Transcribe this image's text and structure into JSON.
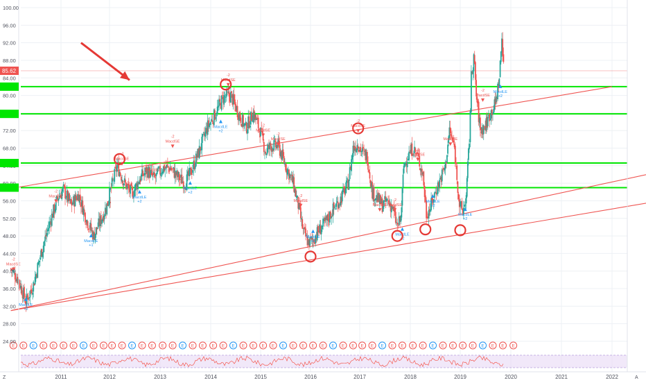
{
  "chart_data": {
    "type": "candlestick",
    "y_axis": {
      "position": "left",
      "ticks": [
        "100.00",
        "96.00",
        "92.00",
        "88.00",
        "84.00",
        "80.00",
        "76.00",
        "72.00",
        "68.00",
        "64.00",
        "60.00",
        "56.00",
        "52.00",
        "48.00",
        "44.00",
        "40.00",
        "36.00",
        "32.00",
        "28.00",
        "24.00"
      ],
      "range": [
        22,
        102
      ]
    },
    "x_axis": {
      "ticks": [
        "2011",
        "2012",
        "2013",
        "2014",
        "2015",
        "2016",
        "2017",
        "2018",
        "2019",
        "2020",
        "2021",
        "2022"
      ],
      "range": [
        2010.0,
        2022.7
      ]
    },
    "last_price": {
      "label": "85.62",
      "value": 85.62,
      "color": "#ef5350"
    },
    "horizontal_levels": [
      {
        "value": 82.0,
        "color": "#00e600"
      },
      {
        "value": 75.8,
        "color": "#00e600"
      },
      {
        "value": 64.6,
        "color": "#00e600"
      },
      {
        "value": 59.0,
        "color": "#00e600"
      }
    ],
    "trend_lines": [
      {
        "x1": 2010.0,
        "y1": 58.8,
        "x2": 2022.0,
        "y2": 82.0
      },
      {
        "x1": 2010.0,
        "y1": 31.0,
        "x2": 2022.7,
        "y2": 62.0
      },
      {
        "x1": 2010.0,
        "y1": 31.0,
        "x2": 2022.7,
        "y2": 55.5
      }
    ],
    "arrow": {
      "x1": 2011.4,
      "y1": 92.0,
      "x2": 2012.4,
      "y2": 83.5
    },
    "circles": [
      {
        "x": 2012.2,
        "y": 65.5
      },
      {
        "x": 2014.3,
        "y": 82.5
      },
      {
        "x": 2016.0,
        "y": 43.3
      },
      {
        "x": 2016.95,
        "y": 72.5
      },
      {
        "x": 2017.75,
        "y": 48.0
      },
      {
        "x": 2018.3,
        "y": 49.5
      },
      {
        "x": 2019.0,
        "y": 49.3
      }
    ],
    "signals": [
      {
        "x": 2010.05,
        "y": 40.5,
        "type": "sell",
        "text": "MacdSE",
        "count": "-2"
      },
      {
        "x": 2010.3,
        "y": 33.5,
        "type": "buy",
        "text": "MacdLE",
        "count": "+2"
      },
      {
        "x": 2010.9,
        "y": 56.0,
        "type": "sell",
        "text": "MacdSE",
        "count": "-2"
      },
      {
        "x": 2011.6,
        "y": 48.0,
        "type": "buy",
        "text": "MacdLE",
        "count": "+1"
      },
      {
        "x": 2012.25,
        "y": 64.5,
        "type": "sell",
        "text": "MacdSE",
        "count": "-2"
      },
      {
        "x": 2012.6,
        "y": 58.0,
        "type": "buy",
        "text": "MacdLE",
        "count": "+2"
      },
      {
        "x": 2012.85,
        "y": 62.0,
        "type": "sell",
        "text": "MacdSE",
        "count": "-2"
      },
      {
        "x": 2013.25,
        "y": 68.5,
        "type": "sell",
        "text": "MacdSE",
        "count": "-2"
      },
      {
        "x": 2013.6,
        "y": 60.0,
        "type": "buy",
        "text": "MacdLE",
        "count": "+2"
      },
      {
        "x": 2014.2,
        "y": 74.0,
        "type": "buy",
        "text": "MacdLE",
        "count": "+2"
      },
      {
        "x": 2014.35,
        "y": 82.5,
        "type": "sell",
        "text": "MacdSE",
        "count": "-2"
      },
      {
        "x": 2015.05,
        "y": 71.0,
        "type": "sell",
        "text": "MacdSE",
        "count": "-2"
      },
      {
        "x": 2015.35,
        "y": 69.0,
        "type": "sell",
        "text": "MacdSE",
        "count": "-2"
      },
      {
        "x": 2015.8,
        "y": 55.0,
        "type": "sell",
        "text": "MacdSE",
        "count": "-2"
      },
      {
        "x": 2016.05,
        "y": 49.0,
        "type": "buy",
        "text": "MacdLE",
        "count": "+2"
      },
      {
        "x": 2016.95,
        "y": 72.0,
        "type": "sell",
        "text": "MacdSE",
        "count": "-2"
      },
      {
        "x": 2017.4,
        "y": 54.0,
        "type": "sell",
        "text": "MacdSE",
        "count": "-2"
      },
      {
        "x": 2017.7,
        "y": 54.0,
        "type": "sell",
        "text": "MacdSE",
        "count": "-2"
      },
      {
        "x": 2017.85,
        "y": 49.5,
        "type": "buy",
        "text": "MacdLE",
        "count": "+2"
      },
      {
        "x": 2018.15,
        "y": 65.5,
        "type": "sell",
        "text": "MacdSE",
        "count": "-2"
      },
      {
        "x": 2018.45,
        "y": 57.0,
        "type": "buy",
        "text": "MacdLE",
        "count": "+2"
      },
      {
        "x": 2018.8,
        "y": 69.0,
        "type": "sell",
        "text": "MacdSE",
        "count": "-2"
      },
      {
        "x": 2019.1,
        "y": 54.0,
        "type": "buy",
        "text": "MacdLE",
        "count": "+2"
      },
      {
        "x": 2019.45,
        "y": 79.0,
        "type": "sell",
        "text": "MacdSE",
        "count": "-2"
      },
      {
        "x": 2019.8,
        "y": 82.0,
        "type": "buy",
        "text": "MacdLE",
        "count": "+2"
      }
    ],
    "anchors": [
      [
        2010.0,
        40.5
      ],
      [
        2010.15,
        38.0
      ],
      [
        2010.3,
        33.0
      ],
      [
        2010.45,
        37.0
      ],
      [
        2010.6,
        44.0
      ],
      [
        2010.8,
        52.0
      ],
      [
        2010.95,
        57.0
      ],
      [
        2011.05,
        58.5
      ],
      [
        2011.2,
        55.0
      ],
      [
        2011.35,
        57.5
      ],
      [
        2011.5,
        52.0
      ],
      [
        2011.65,
        48.0
      ],
      [
        2011.85,
        53.0
      ],
      [
        2012.0,
        57.5
      ],
      [
        2012.15,
        64.0
      ],
      [
        2012.3,
        60.0
      ],
      [
        2012.45,
        57.5
      ],
      [
        2012.6,
        61.0
      ],
      [
        2012.75,
        63.0
      ],
      [
        2012.9,
        61.0
      ],
      [
        2013.05,
        63.5
      ],
      [
        2013.2,
        63.5
      ],
      [
        2013.35,
        61.5
      ],
      [
        2013.5,
        60.0
      ],
      [
        2013.65,
        63.5
      ],
      [
        2013.8,
        68.0
      ],
      [
        2013.95,
        73.0
      ],
      [
        2014.1,
        76.0
      ],
      [
        2014.25,
        79.5
      ],
      [
        2014.4,
        80.0
      ],
      [
        2014.55,
        76.0
      ],
      [
        2014.7,
        72.5
      ],
      [
        2014.85,
        76.0
      ],
      [
        2015.0,
        71.5
      ],
      [
        2015.1,
        67.0
      ],
      [
        2015.2,
        68.5
      ],
      [
        2015.35,
        68.5
      ],
      [
        2015.5,
        64.0
      ],
      [
        2015.65,
        60.0
      ],
      [
        2015.75,
        55.0
      ],
      [
        2015.85,
        49.0
      ],
      [
        2015.95,
        46.5
      ],
      [
        2016.05,
        47.0
      ],
      [
        2016.15,
        49.0
      ],
      [
        2016.3,
        51.0
      ],
      [
        2016.45,
        54.0
      ],
      [
        2016.6,
        56.5
      ],
      [
        2016.75,
        60.0
      ],
      [
        2016.85,
        68.0
      ],
      [
        2016.95,
        69.0
      ],
      [
        2017.05,
        67.0
      ],
      [
        2017.15,
        66.0
      ],
      [
        2017.25,
        58.0
      ],
      [
        2017.35,
        56.5
      ],
      [
        2017.45,
        55.0
      ],
      [
        2017.55,
        56.0
      ],
      [
        2017.65,
        54.5
      ],
      [
        2017.75,
        50.0
      ],
      [
        2017.82,
        52.0
      ],
      [
        2017.88,
        64.0
      ],
      [
        2017.95,
        66.0
      ],
      [
        2018.05,
        68.0
      ],
      [
        2018.15,
        66.0
      ],
      [
        2018.25,
        62.0
      ],
      [
        2018.32,
        53.0
      ],
      [
        2018.4,
        54.5
      ],
      [
        2018.5,
        58.0
      ],
      [
        2018.6,
        61.0
      ],
      [
        2018.7,
        64.0
      ],
      [
        2018.78,
        72.0
      ],
      [
        2018.88,
        68.0
      ],
      [
        2018.98,
        55.0
      ],
      [
        2019.05,
        53.5
      ],
      [
        2019.12,
        57.0
      ],
      [
        2019.18,
        70.0
      ],
      [
        2019.22,
        84.0
      ],
      [
        2019.27,
        89.0
      ],
      [
        2019.32,
        80.0
      ],
      [
        2019.4,
        72.0
      ],
      [
        2019.5,
        73.0
      ],
      [
        2019.6,
        76.0
      ],
      [
        2019.7,
        78.0
      ],
      [
        2019.78,
        84.0
      ],
      [
        2019.83,
        93.0
      ],
      [
        2019.88,
        85.6
      ]
    ],
    "earnings_marker": "E",
    "earnings_years": [
      2010.05,
      2010.25,
      2010.45,
      2010.65,
      2010.85,
      2011.05,
      2011.25,
      2011.45,
      2011.65,
      2011.85,
      2012.05,
      2012.25,
      2012.45,
      2012.65,
      2012.85,
      2013.05,
      2013.25,
      2013.45,
      2013.65,
      2013.85,
      2014.05,
      2014.25,
      2014.45,
      2014.65,
      2014.85,
      2015.05,
      2015.25,
      2015.45,
      2015.65,
      2015.85,
      2016.05,
      2016.25,
      2016.45,
      2016.65,
      2016.85,
      2017.05,
      2017.25,
      2017.45,
      2017.65,
      2017.85,
      2018.05,
      2018.25,
      2018.45,
      2018.65,
      2018.85,
      2019.05,
      2019.25,
      2019.45,
      2019.65,
      2019.85,
      2020.05
    ],
    "oscillator": {
      "levels": [
        70,
        30
      ]
    },
    "corner_labels": {
      "bottom_left": "Z",
      "bottom_right": "A"
    },
    "colors": {
      "up": "#26a69a",
      "down": "#ef5350",
      "level": "#00e600",
      "trend": "#ef5350",
      "osc_line": "#f44336",
      "osc_band": "#e8d9f5"
    }
  }
}
